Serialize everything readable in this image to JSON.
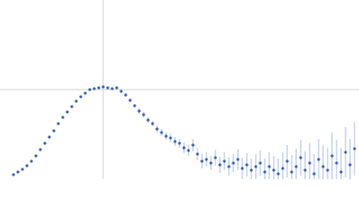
{
  "chart_data": {
    "type": "scatter",
    "color": "#3a64b8",
    "error_color": "#a9bde6",
    "grid": true,
    "xlim": [
      0,
      400
    ],
    "ylim": [
      0,
      200
    ],
    "xticks": [
      115
    ],
    "yticks": [
      100
    ],
    "x": [
      15,
      20,
      25,
      30,
      35,
      40,
      45,
      50,
      55,
      60,
      65,
      70,
      75,
      80,
      85,
      90,
      95,
      100,
      105,
      110,
      115,
      120,
      125,
      130,
      135,
      140,
      145,
      150,
      155,
      160,
      165,
      170,
      175,
      180,
      185,
      190,
      195,
      200,
      205,
      210,
      215,
      220,
      225,
      230,
      235,
      240,
      245,
      250,
      255,
      260,
      265,
      270,
      275,
      280,
      285,
      290,
      295,
      300,
      305,
      310,
      315,
      320,
      325,
      330,
      335,
      340,
      345,
      350,
      355,
      360,
      365,
      370,
      375,
      380,
      385,
      390,
      395
    ],
    "values": [
      5,
      8,
      11,
      15,
      20,
      26,
      33,
      40,
      47,
      54,
      62,
      69,
      75,
      81,
      87,
      92,
      96,
      100,
      101,
      102,
      103,
      102,
      101,
      102,
      98,
      94,
      88,
      82,
      76,
      72,
      66,
      62,
      56,
      52,
      48,
      46,
      42,
      40,
      35,
      32,
      38,
      28,
      20,
      22,
      18,
      24,
      16,
      20,
      14,
      18,
      22,
      12,
      16,
      10,
      14,
      18,
      8,
      14,
      10,
      6,
      12,
      20,
      8,
      14,
      24,
      10,
      18,
      6,
      22,
      14,
      10,
      26,
      18,
      8,
      30,
      16,
      34
    ],
    "errors": [
      1,
      1,
      1,
      1,
      1,
      1,
      1,
      1,
      1,
      1,
      1,
      1,
      1,
      1,
      1,
      1,
      1,
      1,
      1,
      1,
      1,
      1,
      1,
      1,
      1,
      2,
      2,
      2,
      3,
      3,
      3,
      3,
      4,
      4,
      4,
      5,
      5,
      5,
      6,
      6,
      7,
      7,
      8,
      8,
      8,
      9,
      9,
      10,
      10,
      10,
      12,
      12,
      13,
      13,
      14,
      14,
      15,
      16,
      16,
      17,
      18,
      18,
      19,
      20,
      20,
      21,
      22,
      22,
      23,
      24,
      25,
      26,
      26,
      27,
      28,
      29,
      30
    ]
  }
}
